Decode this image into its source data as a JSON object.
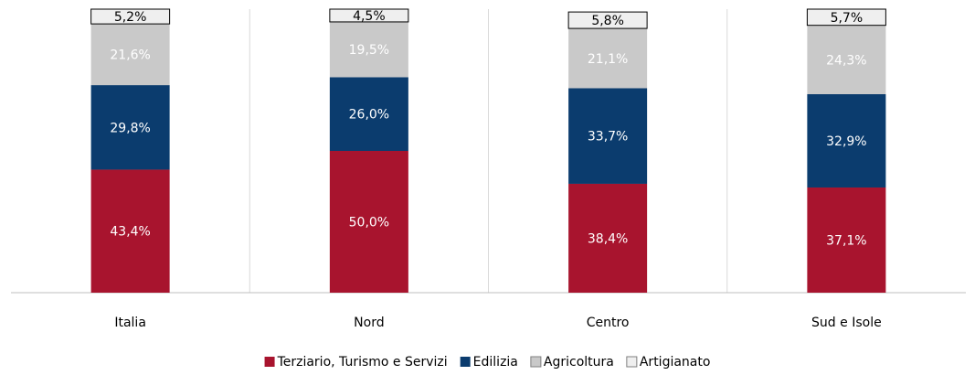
{
  "chart_data": {
    "type": "stacked_bar",
    "categories": [
      "Italia",
      "Nord",
      "Centro",
      "Sud e Isole"
    ],
    "ylim": [
      0,
      100
    ],
    "series": [
      {
        "name": "Terziario, Turismo e Servizi",
        "color": "#a8142e",
        "values": [
          43.4,
          50.0,
          38.4,
          37.1
        ],
        "value_labels": [
          "43,4%",
          "50,0%",
          "38,4%",
          "37,1%"
        ]
      },
      {
        "name": "Edilizia",
        "color": "#0b3c6e",
        "values": [
          29.8,
          26.0,
          33.7,
          32.9
        ],
        "value_labels": [
          "29,8%",
          "26,0%",
          "33,7%",
          "32,9%"
        ]
      },
      {
        "name": "Agricoltura",
        "color": "#c9c9c9",
        "values": [
          21.6,
          19.5,
          21.1,
          24.3
        ],
        "value_labels": [
          "21,6%",
          "19,5%",
          "21,1%",
          "24,3%"
        ]
      },
      {
        "name": "Artigianato",
        "color": "#efefef",
        "values": [
          5.2,
          4.5,
          5.8,
          5.7
        ],
        "value_labels": [
          "5,2%",
          "4,5%",
          "5,8%",
          "5,7%"
        ]
      }
    ]
  }
}
